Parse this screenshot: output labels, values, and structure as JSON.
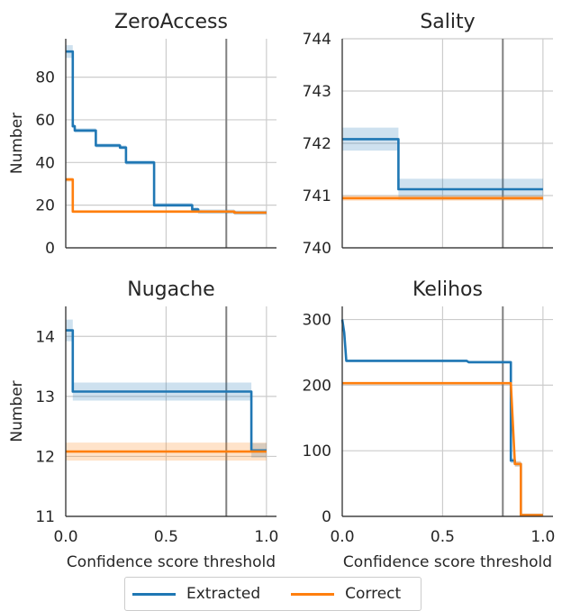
{
  "chart_data": [
    {
      "type": "line",
      "title": "ZeroAccess",
      "xlabel": "",
      "ylabel": "Number",
      "xlim": [
        0,
        1.05
      ],
      "ylim": [
        0,
        98
      ],
      "yticks": [
        0,
        20,
        40,
        60,
        80
      ],
      "xticks": [
        0.0,
        0.5,
        1.0
      ],
      "show_x_tick_labels": false,
      "show_y_tick_labels": true,
      "grid": true,
      "vline": 0.8,
      "series": [
        {
          "name": "Extracted",
          "x": [
            0.0,
            0.035,
            0.035,
            0.045,
            0.045,
            0.07,
            0.07,
            0.15,
            0.15,
            0.27,
            0.27,
            0.3,
            0.3,
            0.44,
            0.44,
            0.63,
            0.63,
            0.66,
            0.66,
            0.84,
            0.84,
            1.0
          ],
          "y": [
            92,
            92,
            57,
            57,
            55,
            55,
            55,
            55,
            48,
            48,
            47,
            47,
            40,
            40,
            20,
            20,
            18,
            18,
            17,
            17,
            16.5,
            16.5
          ],
          "band": [
            3,
            3,
            1,
            1,
            1,
            1,
            1,
            1,
            1,
            1,
            1,
            1,
            1,
            1,
            1,
            1,
            1,
            1,
            1,
            1,
            1,
            1
          ]
        },
        {
          "name": "Correct",
          "x": [
            0.0,
            0.035,
            0.035,
            0.84,
            0.84,
            1.0
          ],
          "y": [
            32,
            32,
            17,
            17,
            16.5,
            16.5
          ],
          "band": [
            1,
            1,
            0.6,
            0.6,
            0.6,
            0.6
          ]
        }
      ]
    },
    {
      "type": "line",
      "title": "Sality",
      "xlabel": "",
      "ylabel": "",
      "xlim": [
        0,
        1.05
      ],
      "ylim": [
        740,
        744
      ],
      "yticks": [
        740,
        741,
        742,
        743,
        744
      ],
      "xticks": [
        0.0,
        0.5,
        1.0
      ],
      "show_x_tick_labels": false,
      "show_y_tick_labels": true,
      "grid": true,
      "vline": 0.8,
      "series": [
        {
          "name": "Extracted",
          "x": [
            0.0,
            0.28,
            0.28,
            1.0
          ],
          "y": [
            742.08,
            742.08,
            741.12,
            741.12
          ],
          "band": [
            0.22,
            0.22,
            0.2,
            0.2
          ]
        },
        {
          "name": "Correct",
          "x": [
            0.0,
            1.0
          ],
          "y": [
            740.95,
            740.95
          ],
          "band": [
            0.05,
            0.05
          ]
        }
      ]
    },
    {
      "type": "line",
      "title": "Nugache",
      "xlabel": "Confidence score threshold",
      "ylabel": "Number",
      "xlim": [
        0,
        1.05
      ],
      "ylim": [
        11,
        14.5
      ],
      "yticks": [
        11,
        12,
        13,
        14
      ],
      "xticks": [
        0.0,
        0.5,
        1.0
      ],
      "show_x_tick_labels": true,
      "show_y_tick_labels": true,
      "grid": true,
      "vline": 0.8,
      "series": [
        {
          "name": "Extracted",
          "x": [
            0.0,
            0.035,
            0.035,
            0.925,
            0.925,
            1.0
          ],
          "y": [
            14.1,
            14.1,
            13.08,
            13.08,
            12.1,
            12.1
          ],
          "band": [
            0.18,
            0.18,
            0.15,
            0.15,
            0.12,
            0.12
          ]
        },
        {
          "name": "Correct",
          "x": [
            0.0,
            1.0
          ],
          "y": [
            12.08,
            12.08
          ],
          "band": [
            0.15,
            0.15
          ]
        }
      ]
    },
    {
      "type": "line",
      "title": "Kelihos",
      "xlabel": "Confidence score threshold",
      "ylabel": "",
      "xlim": [
        0,
        1.05
      ],
      "ylim": [
        0,
        320
      ],
      "yticks": [
        0,
        100,
        200,
        300
      ],
      "xticks": [
        0.0,
        0.5,
        1.0
      ],
      "show_x_tick_labels": true,
      "show_y_tick_labels": true,
      "grid": true,
      "vline": 0.8,
      "series": [
        {
          "name": "Extracted",
          "x": [
            0.0,
            0.01,
            0.02,
            0.62,
            0.63,
            0.84,
            0.84,
            0.86,
            0.86,
            0.89,
            0.89,
            1.0
          ],
          "y": [
            300,
            280,
            237,
            237,
            235,
            235,
            85,
            85,
            80,
            80,
            2,
            2
          ],
          "band": [
            3,
            3,
            2,
            2,
            2,
            2,
            4,
            4,
            4,
            4,
            1,
            1
          ]
        },
        {
          "name": "Correct",
          "x": [
            0.0,
            0.84,
            0.84,
            0.86,
            0.86,
            0.89,
            0.89,
            1.0
          ],
          "y": [
            203,
            203,
            203,
            80,
            80,
            80,
            2,
            2
          ],
          "band": [
            1,
            1,
            1,
            4,
            4,
            4,
            1,
            1
          ]
        }
      ]
    }
  ],
  "legend": [
    {
      "label": "Extracted",
      "color": "#1f77b4"
    },
    {
      "label": "Correct",
      "color": "#ff7f0e"
    }
  ],
  "colors": {
    "Extracted": "#1f77b4",
    "Correct": "#ff7f0e",
    "vline": "#808080",
    "grid": "#cccccc",
    "axis": "#262626"
  }
}
